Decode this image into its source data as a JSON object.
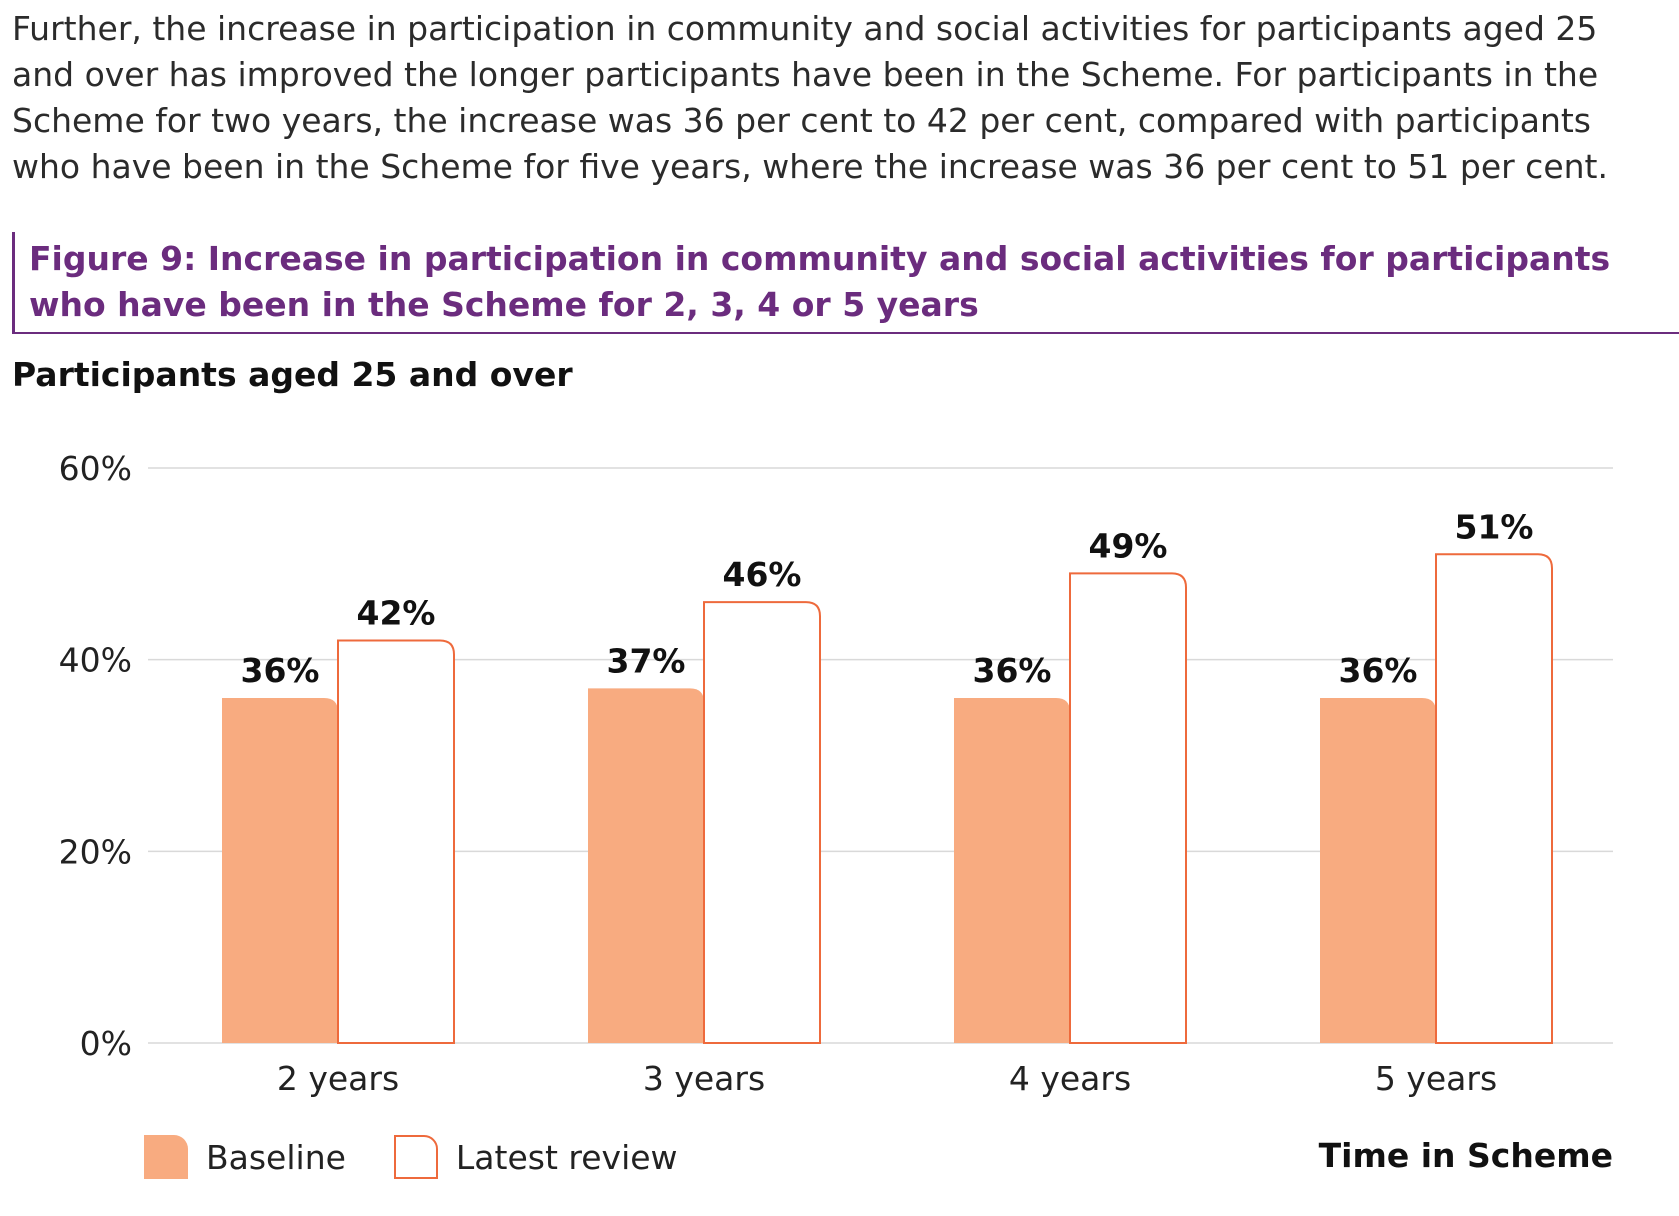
{
  "intro_text": "Further, the increase in participation in community and social activities for participants aged 25 and over has improved the longer participants have been in the Scheme. For participants in the Scheme for two years, the increase was 36 per cent to 42 per cent, compared with participants who have been in the Scheme for five years, where the increase was 36 per cent to 51 per cent.",
  "figure_title": "Figure 9: Increase in participation in community and social activities for participants who have been in the Scheme for 2, 3, 4 or 5 years",
  "chart_subtitle": "Participants aged 25 and over",
  "legend": {
    "baseline": "Baseline",
    "latest": "Latest review"
  },
  "x_axis_title": "Time in Scheme",
  "colors": {
    "baseline": "#f8ab80",
    "latest_border": "#ee6a3c",
    "title": "#6b2c7e",
    "grid": "#d9d9d9"
  },
  "chart_data": {
    "type": "bar",
    "categories": [
      "2 years",
      "3 years",
      "4 years",
      "5 years"
    ],
    "series": [
      {
        "name": "Baseline",
        "values": [
          36,
          37,
          36,
          36
        ],
        "labels": [
          "36%",
          "37%",
          "36%",
          "36%"
        ]
      },
      {
        "name": "Latest review",
        "values": [
          42,
          46,
          49,
          51
        ],
        "labels": [
          "42%",
          "46%",
          "49%",
          "51%"
        ]
      }
    ],
    "yticks": [
      0,
      20,
      40,
      60
    ],
    "ytick_labels": [
      "0%",
      "20%",
      "40%",
      "60%"
    ],
    "ylim": [
      0,
      60
    ],
    "xlabel": "Time in Scheme",
    "ylabel": "",
    "grid": true,
    "legend_position": "bottom-left"
  }
}
